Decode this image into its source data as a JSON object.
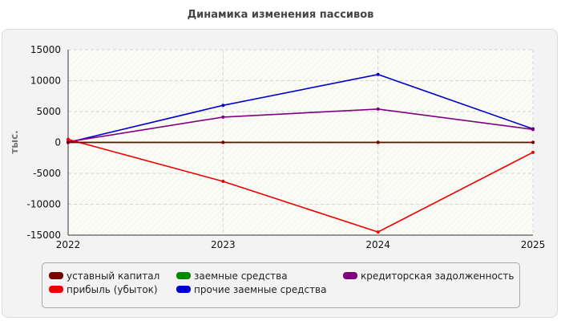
{
  "chart_data": {
    "type": "line",
    "title": "Динамика изменения пассивов",
    "xlabel": "",
    "ylabel": "тыс.",
    "x": [
      "2022",
      "2023",
      "2024",
      "2025"
    ],
    "ylim": [
      -15000,
      15000
    ],
    "yticks": [
      15000,
      10000,
      5000,
      0,
      -5000,
      -10000,
      -15000
    ],
    "grid": true,
    "legend_position": "bottom",
    "series": [
      {
        "name": "уставный капитал",
        "color": "#7b0000",
        "values": [
          10,
          10,
          10,
          10
        ]
      },
      {
        "name": "прибыль (убыток)",
        "color": "#ee0000",
        "values": [
          500,
          -6300,
          -14500,
          -1600
        ]
      },
      {
        "name": "заемные средства",
        "color": "#008a00",
        "values": [
          0,
          0,
          0,
          0
        ]
      },
      {
        "name": "прочие заемные средства",
        "color": "#0000cc",
        "values": [
          0,
          6000,
          11000,
          2200
        ]
      },
      {
        "name": "кредиторская задолженность",
        "color": "#800080",
        "values": [
          100,
          4100,
          5400,
          2100
        ]
      }
    ]
  }
}
